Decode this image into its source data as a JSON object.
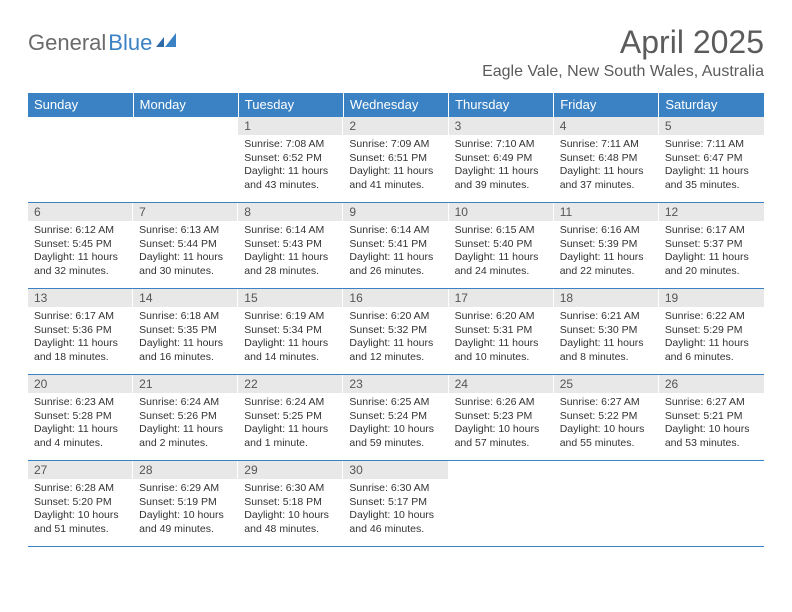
{
  "logo": {
    "word1": "General",
    "word2": "Blue",
    "text_color": "#6b6b6b",
    "accent_color": "#3b82c4"
  },
  "title": "April 2025",
  "location": "Eagle Vale, New South Wales, Australia",
  "colors": {
    "header_bg": "#3b82c4",
    "header_text": "#ffffff",
    "daynum_bg": "#e8e8e8",
    "border": "#3b82c4",
    "text": "#333333"
  },
  "fonts": {
    "title_size": 32,
    "location_size": 16,
    "dayhead_size": 13,
    "body_size": 10.5
  },
  "day_headers": [
    "Sunday",
    "Monday",
    "Tuesday",
    "Wednesday",
    "Thursday",
    "Friday",
    "Saturday"
  ],
  "weeks": [
    [
      {
        "n": "",
        "sunrise": "",
        "sunset": "",
        "daylight": ""
      },
      {
        "n": "",
        "sunrise": "",
        "sunset": "",
        "daylight": ""
      },
      {
        "n": "1",
        "sunrise": "Sunrise: 7:08 AM",
        "sunset": "Sunset: 6:52 PM",
        "daylight": "Daylight: 11 hours and 43 minutes."
      },
      {
        "n": "2",
        "sunrise": "Sunrise: 7:09 AM",
        "sunset": "Sunset: 6:51 PM",
        "daylight": "Daylight: 11 hours and 41 minutes."
      },
      {
        "n": "3",
        "sunrise": "Sunrise: 7:10 AM",
        "sunset": "Sunset: 6:49 PM",
        "daylight": "Daylight: 11 hours and 39 minutes."
      },
      {
        "n": "4",
        "sunrise": "Sunrise: 7:11 AM",
        "sunset": "Sunset: 6:48 PM",
        "daylight": "Daylight: 11 hours and 37 minutes."
      },
      {
        "n": "5",
        "sunrise": "Sunrise: 7:11 AM",
        "sunset": "Sunset: 6:47 PM",
        "daylight": "Daylight: 11 hours and 35 minutes."
      }
    ],
    [
      {
        "n": "6",
        "sunrise": "Sunrise: 6:12 AM",
        "sunset": "Sunset: 5:45 PM",
        "daylight": "Daylight: 11 hours and 32 minutes."
      },
      {
        "n": "7",
        "sunrise": "Sunrise: 6:13 AM",
        "sunset": "Sunset: 5:44 PM",
        "daylight": "Daylight: 11 hours and 30 minutes."
      },
      {
        "n": "8",
        "sunrise": "Sunrise: 6:14 AM",
        "sunset": "Sunset: 5:43 PM",
        "daylight": "Daylight: 11 hours and 28 minutes."
      },
      {
        "n": "9",
        "sunrise": "Sunrise: 6:14 AM",
        "sunset": "Sunset: 5:41 PM",
        "daylight": "Daylight: 11 hours and 26 minutes."
      },
      {
        "n": "10",
        "sunrise": "Sunrise: 6:15 AM",
        "sunset": "Sunset: 5:40 PM",
        "daylight": "Daylight: 11 hours and 24 minutes."
      },
      {
        "n": "11",
        "sunrise": "Sunrise: 6:16 AM",
        "sunset": "Sunset: 5:39 PM",
        "daylight": "Daylight: 11 hours and 22 minutes."
      },
      {
        "n": "12",
        "sunrise": "Sunrise: 6:17 AM",
        "sunset": "Sunset: 5:37 PM",
        "daylight": "Daylight: 11 hours and 20 minutes."
      }
    ],
    [
      {
        "n": "13",
        "sunrise": "Sunrise: 6:17 AM",
        "sunset": "Sunset: 5:36 PM",
        "daylight": "Daylight: 11 hours and 18 minutes."
      },
      {
        "n": "14",
        "sunrise": "Sunrise: 6:18 AM",
        "sunset": "Sunset: 5:35 PM",
        "daylight": "Daylight: 11 hours and 16 minutes."
      },
      {
        "n": "15",
        "sunrise": "Sunrise: 6:19 AM",
        "sunset": "Sunset: 5:34 PM",
        "daylight": "Daylight: 11 hours and 14 minutes."
      },
      {
        "n": "16",
        "sunrise": "Sunrise: 6:20 AM",
        "sunset": "Sunset: 5:32 PM",
        "daylight": "Daylight: 11 hours and 12 minutes."
      },
      {
        "n": "17",
        "sunrise": "Sunrise: 6:20 AM",
        "sunset": "Sunset: 5:31 PM",
        "daylight": "Daylight: 11 hours and 10 minutes."
      },
      {
        "n": "18",
        "sunrise": "Sunrise: 6:21 AM",
        "sunset": "Sunset: 5:30 PM",
        "daylight": "Daylight: 11 hours and 8 minutes."
      },
      {
        "n": "19",
        "sunrise": "Sunrise: 6:22 AM",
        "sunset": "Sunset: 5:29 PM",
        "daylight": "Daylight: 11 hours and 6 minutes."
      }
    ],
    [
      {
        "n": "20",
        "sunrise": "Sunrise: 6:23 AM",
        "sunset": "Sunset: 5:28 PM",
        "daylight": "Daylight: 11 hours and 4 minutes."
      },
      {
        "n": "21",
        "sunrise": "Sunrise: 6:24 AM",
        "sunset": "Sunset: 5:26 PM",
        "daylight": "Daylight: 11 hours and 2 minutes."
      },
      {
        "n": "22",
        "sunrise": "Sunrise: 6:24 AM",
        "sunset": "Sunset: 5:25 PM",
        "daylight": "Daylight: 11 hours and 1 minute."
      },
      {
        "n": "23",
        "sunrise": "Sunrise: 6:25 AM",
        "sunset": "Sunset: 5:24 PM",
        "daylight": "Daylight: 10 hours and 59 minutes."
      },
      {
        "n": "24",
        "sunrise": "Sunrise: 6:26 AM",
        "sunset": "Sunset: 5:23 PM",
        "daylight": "Daylight: 10 hours and 57 minutes."
      },
      {
        "n": "25",
        "sunrise": "Sunrise: 6:27 AM",
        "sunset": "Sunset: 5:22 PM",
        "daylight": "Daylight: 10 hours and 55 minutes."
      },
      {
        "n": "26",
        "sunrise": "Sunrise: 6:27 AM",
        "sunset": "Sunset: 5:21 PM",
        "daylight": "Daylight: 10 hours and 53 minutes."
      }
    ],
    [
      {
        "n": "27",
        "sunrise": "Sunrise: 6:28 AM",
        "sunset": "Sunset: 5:20 PM",
        "daylight": "Daylight: 10 hours and 51 minutes."
      },
      {
        "n": "28",
        "sunrise": "Sunrise: 6:29 AM",
        "sunset": "Sunset: 5:19 PM",
        "daylight": "Daylight: 10 hours and 49 minutes."
      },
      {
        "n": "29",
        "sunrise": "Sunrise: 6:30 AM",
        "sunset": "Sunset: 5:18 PM",
        "daylight": "Daylight: 10 hours and 48 minutes."
      },
      {
        "n": "30",
        "sunrise": "Sunrise: 6:30 AM",
        "sunset": "Sunset: 5:17 PM",
        "daylight": "Daylight: 10 hours and 46 minutes."
      },
      {
        "n": "",
        "sunrise": "",
        "sunset": "",
        "daylight": ""
      },
      {
        "n": "",
        "sunrise": "",
        "sunset": "",
        "daylight": ""
      },
      {
        "n": "",
        "sunrise": "",
        "sunset": "",
        "daylight": ""
      }
    ]
  ]
}
